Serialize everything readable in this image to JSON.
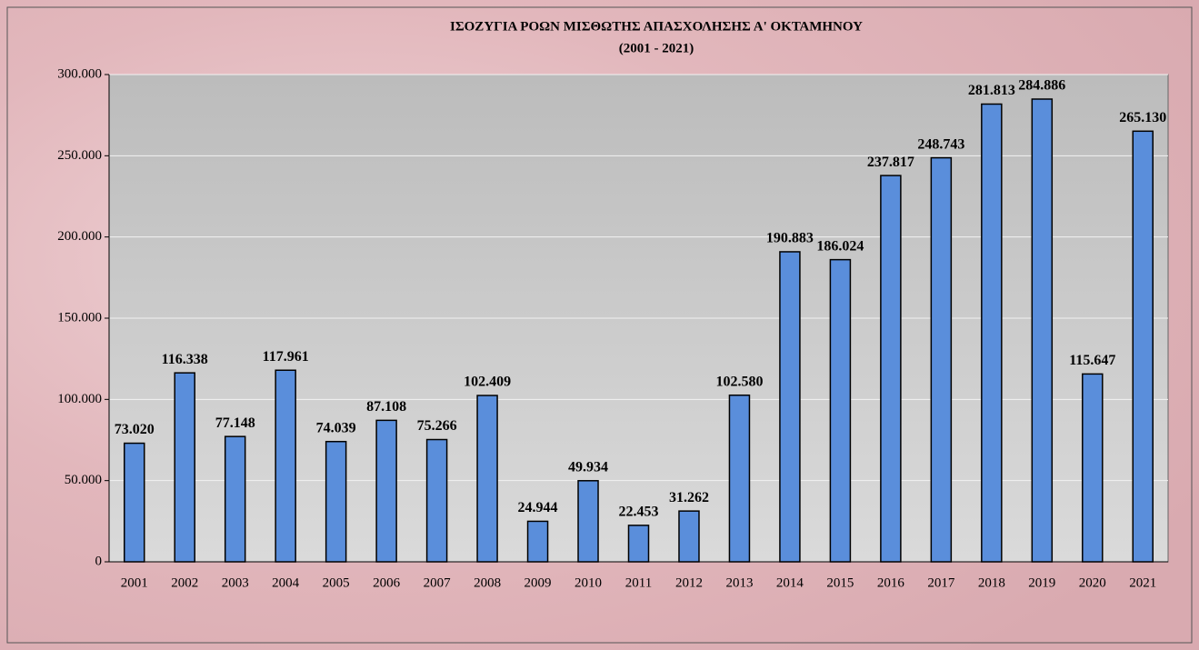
{
  "chart_data": {
    "type": "bar",
    "title": "ΙΣΟΖΥΓΙΑ ΡΟΩΝ ΜΙΣΘΩΤΗΣ ΑΠΑΣΧΟΛΗΣΗΣ Α' ΟΚΤΑΜΗΝΟΥ",
    "subtitle": "(2001 - 2021)",
    "categories": [
      "2001",
      "2002",
      "2003",
      "2004",
      "2005",
      "2006",
      "2007",
      "2008",
      "2009",
      "2010",
      "2011",
      "2012",
      "2013",
      "2014",
      "2015",
      "2016",
      "2017",
      "2018",
      "2019",
      "2020",
      "2021"
    ],
    "values": [
      73020,
      116338,
      77148,
      117961,
      74039,
      87108,
      75266,
      102409,
      24944,
      49934,
      22453,
      31262,
      102580,
      190883,
      186024,
      237817,
      248743,
      281813,
      284886,
      115647,
      265130
    ],
    "value_labels": [
      "73.020",
      "116.338",
      "77.148",
      "117.961",
      "74.039",
      "87.108",
      "75.266",
      "102.409",
      "24.944",
      "49.934",
      "22.453",
      "31.262",
      "102.580",
      "190.883",
      "186.024",
      "237.817",
      "248.743",
      "281.813",
      "284.886",
      "115.647",
      "265.130"
    ],
    "color": "#5a8edb",
    "ylim": [
      0,
      300000
    ],
    "yticks": [
      0,
      {
        "value": 50000,
        "label": "50.000"
      },
      {
        "value": 100000,
        "label": "100.000"
      },
      {
        "value": 150000,
        "label": "150.000"
      },
      {
        "value": 200000,
        "label": "200.000"
      },
      {
        "value": 250000,
        "label": "250.000"
      },
      {
        "value": 300000,
        "label": "300.000"
      }
    ],
    "grid": true
  }
}
